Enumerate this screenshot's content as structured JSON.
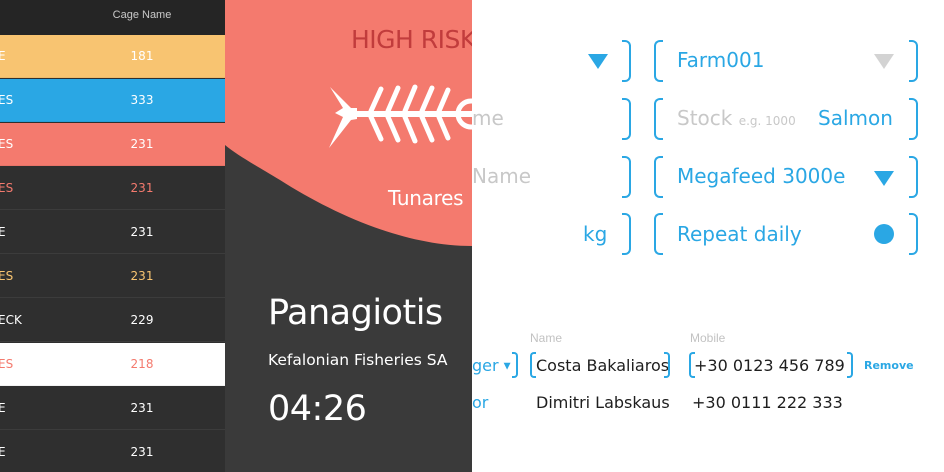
{
  "cage_table": {
    "header": "Cage Name",
    "rows": [
      {
        "name_fragment": "E",
        "value": "181",
        "bg": "#f8c471",
        "fg": "#ffffff",
        "name_fg": "#ffffff"
      },
      {
        "name_fragment": "ES",
        "value": "333",
        "bg": "#2aa7e4",
        "fg": "#ffffff",
        "name_fg": "#ffffff"
      },
      {
        "name_fragment": "ES",
        "value": "231",
        "bg": "#f47a6e",
        "fg": "#ffffff",
        "name_fg": "#ffffff"
      },
      {
        "name_fragment": "ES",
        "value": "231",
        "bg": "#2f2f2f",
        "fg": "#f47a6e",
        "name_fg": "#f47a6e"
      },
      {
        "name_fragment": "E",
        "value": "231",
        "bg": "#2f2f2f",
        "fg": "#ffffff",
        "name_fg": "#ffffff"
      },
      {
        "name_fragment": "ES",
        "value": "231",
        "bg": "#2f2f2f",
        "fg": "#f8c471",
        "name_fg": "#f8c471"
      },
      {
        "name_fragment": "ECK",
        "value": "229",
        "bg": "#2f2f2f",
        "fg": "#ffffff",
        "name_fg": "#ffffff"
      },
      {
        "name_fragment": "ES",
        "value": "218",
        "bg": "#ffffff",
        "fg": "#f47a6e",
        "name_fg": "#f47a6e"
      },
      {
        "name_fragment": "E",
        "value": "231",
        "bg": "#2f2f2f",
        "fg": "#ffffff",
        "name_fg": "#ffffff"
      },
      {
        "name_fragment": "E",
        "value": "231",
        "bg": "#2f2f2f",
        "fg": "#ffffff",
        "name_fg": "#ffffff"
      }
    ]
  },
  "risk_card": {
    "risk_label": "HIGH RISK",
    "farm_label": "Tunares",
    "icon": "fish-skeleton-icon",
    "accent": "#f47a6e",
    "person_name": "Panagiotis",
    "company": "Kefalonian Fisheries SA",
    "time": "04:26"
  },
  "form": {
    "farm_select": {
      "value": "Farm001"
    },
    "stock": {
      "placeholder": "Stock",
      "hint": "e.g. 1000",
      "species": "Salmon"
    },
    "feed_select": {
      "value": "Megafeed 3000e"
    },
    "repeat": {
      "label": "Repeat daily",
      "enabled": true
    },
    "left_partial": {
      "name_label": "me",
      "feed_name_label": "Name",
      "unit": "kg"
    },
    "contacts": {
      "name_header": "Name",
      "mobile_header": "Mobile",
      "rows": [
        {
          "role": "ger",
          "name": "Costa Bakaliaros",
          "mobile": "+30 0123 456 789",
          "action": "Remove"
        },
        {
          "role": "or",
          "name": "Dimitri Labskaus",
          "mobile": "+30 0111 222 333"
        }
      ]
    },
    "accent": "#2aa7e4"
  }
}
